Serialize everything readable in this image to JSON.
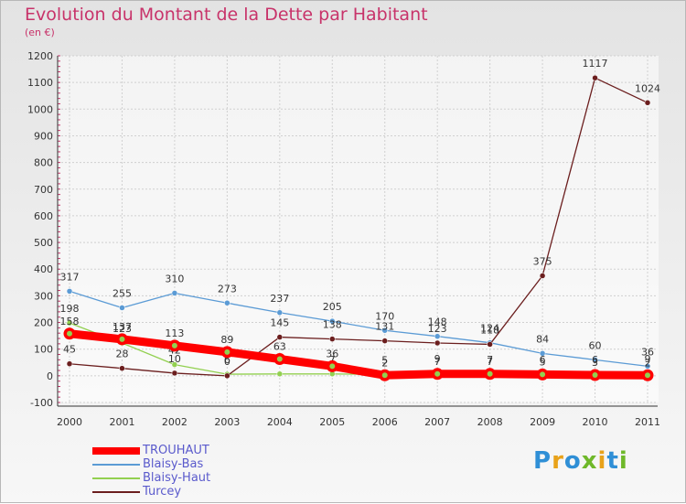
{
  "header": {
    "title": "Evolution du Montant de la Dette par Habitant",
    "subtitle": "(en €)"
  },
  "logo": {
    "letters": [
      "P",
      "r",
      "o",
      "x",
      "i",
      "t",
      "i"
    ],
    "colors": [
      "#2f8fd6",
      "#e8a21a",
      "#2f8fd6",
      "#6fb82a",
      "#e8a21a",
      "#2f8fd6",
      "#6fb82a"
    ]
  },
  "chart_data": {
    "type": "line",
    "title": "Evolution du Montant de la Dette par Habitant",
    "subtitle": "(en €)",
    "xlabel": "",
    "ylabel": "",
    "x": [
      "2000",
      "2001",
      "2002",
      "2003",
      "2004",
      "2005",
      "2006",
      "2007",
      "2008",
      "2009",
      "2010",
      "2011"
    ],
    "ylim": [
      -100,
      1200
    ],
    "yticks": [
      "-100",
      "0",
      "100",
      "200",
      "300",
      "400",
      "500",
      "600",
      "700",
      "800",
      "900",
      "1000",
      "1100",
      "1200"
    ],
    "grid": true,
    "legend_position": "bottom-left",
    "series": [
      {
        "name": "TROUHAUT",
        "color": "#ff0000",
        "values": [
          158,
          137,
          113,
          89,
          63,
          36,
          2,
          7,
          7,
          5,
          3,
          2
        ],
        "labels": [
          "158",
          "137",
          "113",
          "89",
          "63",
          "36",
          "2",
          "7",
          "7",
          "5",
          "3",
          "2"
        ]
      },
      {
        "name": "Blaisy-Bas",
        "color": "#5b9bd5",
        "values": [
          317,
          255,
          310,
          273,
          237,
          205,
          170,
          148,
          124,
          84,
          60,
          36
        ],
        "labels": [
          "317",
          "255",
          "310",
          "273",
          "237",
          "205",
          "170",
          "148",
          "124",
          "84",
          "60",
          "36"
        ]
      },
      {
        "name": "Blaisy-Haut",
        "color": "#92d050",
        "values": [
          198,
          123,
          42,
          6,
          7,
          7,
          5,
          9,
          7,
          6,
          6,
          9
        ],
        "labels": [
          "198",
          "123",
          "42",
          "6",
          "7",
          "7",
          "5",
          "9",
          "7",
          "6",
          "6",
          "9"
        ]
      },
      {
        "name": "Turcey",
        "color": "#6b1e1e",
        "values": [
          45,
          28,
          10,
          0,
          145,
          138,
          131,
          123,
          118,
          375,
          1117,
          1024
        ],
        "labels": [
          "45",
          "28",
          "10",
          "0",
          "145",
          "138",
          "131",
          "123",
          "118",
          "375",
          "1117",
          "1024"
        ]
      }
    ]
  }
}
